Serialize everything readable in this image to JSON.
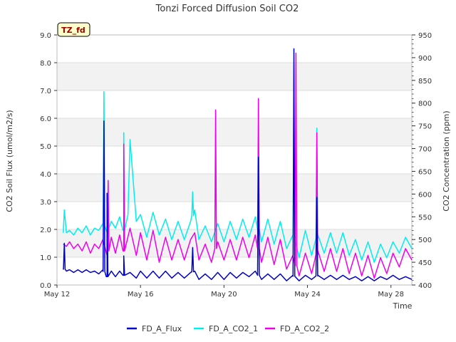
{
  "chart_data": {
    "type": "line",
    "title": "Tonzi Forced Diffusion Soil CO2",
    "site_label": "TZ_fd",
    "xlabel": "Time",
    "ylabel_left": "CO2 Soil Flux (umol/m2/s)",
    "ylabel_right": "CO2 Concentration (ppm)",
    "x_unit": "day of May",
    "xlim": [
      12,
      29.0
    ],
    "ylim_left": [
      0,
      9
    ],
    "ylim_right": [
      400,
      950
    ],
    "x_ticks": [
      {
        "value": 12,
        "label": "May 12"
      },
      {
        "value": 16,
        "label": "May 16"
      },
      {
        "value": 20,
        "label": "May 20"
      },
      {
        "value": 24,
        "label": "May 24"
      },
      {
        "value": 28,
        "label": "May 28"
      }
    ],
    "y_ticks_left": [
      "0.0",
      "1.0",
      "2.0",
      "3.0",
      "4.0",
      "5.0",
      "6.0",
      "7.0",
      "8.0",
      "9.0"
    ],
    "y_ticks_right": [
      "400",
      "450",
      "500",
      "550",
      "600",
      "650",
      "700",
      "750",
      "800",
      "850",
      "900",
      "950"
    ],
    "grid": "horizontal bands",
    "legend_position": "bottom",
    "colors": {
      "flux": "#0000cc",
      "co2_1": "#00eeee",
      "co2_2": "#ee00ee"
    },
    "series": [
      {
        "name": "FD_A_CO2_1",
        "axis": "right",
        "x": [
          12.3,
          12.35,
          12.45,
          12.6,
          12.8,
          13.0,
          13.2,
          13.4,
          13.6,
          13.8,
          14.0,
          14.2,
          14.4,
          14.6,
          14.8,
          15.0,
          15.2,
          15.4,
          15.5,
          15.8,
          16.0,
          16.3,
          16.6,
          16.9,
          17.2,
          17.5,
          17.8,
          18.1,
          18.4,
          18.6,
          18.8,
          19.1,
          19.4,
          19.7,
          20.0,
          20.3,
          20.6,
          20.9,
          21.2,
          21.5,
          21.8,
          22.1,
          22.4,
          22.7,
          23.0,
          23.3,
          23.6,
          23.9,
          24.2,
          24.5,
          24.8,
          25.1,
          25.4,
          25.7,
          26.0,
          26.3,
          26.6,
          26.9,
          27.2,
          27.5,
          27.8,
          28.1,
          28.4,
          28.7,
          29.0
        ],
        "y": [
          515,
          565,
          515,
          520,
          510,
          525,
          515,
          530,
          510,
          525,
          520,
          535,
          515,
          540,
          525,
          550,
          520,
          555,
          720,
          540,
          555,
          505,
          560,
          510,
          545,
          500,
          540,
          500,
          540,
          565,
          500,
          530,
          495,
          535,
          495,
          540,
          500,
          545,
          505,
          550,
          495,
          545,
          490,
          540,
          480,
          510,
          460,
          520,
          465,
          510,
          470,
          515,
          470,
          515,
          465,
          500,
          455,
          495,
          450,
          490,
          460,
          495,
          470,
          505,
          480
        ]
      },
      {
        "name": "FD_A_CO2_2",
        "axis": "right",
        "x": [
          12.3,
          12.45,
          12.6,
          12.8,
          13.0,
          13.2,
          13.4,
          13.6,
          13.8,
          14.0,
          14.2,
          14.4,
          14.6,
          14.8,
          15.0,
          15.2,
          15.5,
          15.8,
          16.0,
          16.3,
          16.6,
          16.9,
          17.2,
          17.5,
          17.8,
          18.1,
          18.4,
          18.6,
          18.8,
          19.1,
          19.4,
          19.7,
          20.0,
          20.3,
          20.6,
          20.9,
          21.2,
          21.5,
          21.8,
          22.1,
          22.4,
          22.7,
          23.0,
          23.3,
          23.6,
          23.9,
          24.2,
          24.5,
          24.8,
          25.1,
          25.4,
          25.7,
          26.0,
          26.3,
          26.6,
          26.9,
          27.2,
          27.5,
          27.8,
          28.1,
          28.4,
          28.7,
          29.0
        ],
        "y": [
          490,
          485,
          495,
          480,
          490,
          475,
          495,
          470,
          490,
          480,
          500,
          465,
          505,
          470,
          510,
          475,
          525,
          465,
          515,
          455,
          520,
          450,
          505,
          455,
          500,
          455,
          500,
          515,
          455,
          490,
          450,
          495,
          455,
          500,
          455,
          505,
          460,
          510,
          450,
          505,
          445,
          500,
          435,
          465,
          420,
          470,
          425,
          475,
          430,
          480,
          430,
          480,
          425,
          470,
          420,
          465,
          415,
          460,
          425,
          470,
          440,
          480,
          455
        ]
      },
      {
        "name": "FD_A_Flux",
        "axis": "left",
        "x": [
          12.3,
          12.45,
          12.6,
          12.8,
          13.0,
          13.2,
          13.4,
          13.6,
          13.8,
          14.0,
          14.2,
          14.4,
          14.6,
          14.8,
          15.0,
          15.2,
          15.5,
          15.8,
          16.0,
          16.3,
          16.6,
          16.9,
          17.2,
          17.5,
          17.8,
          18.1,
          18.4,
          18.6,
          18.8,
          19.1,
          19.4,
          19.7,
          20.0,
          20.3,
          20.6,
          20.9,
          21.2,
          21.5,
          21.8,
          22.1,
          22.4,
          22.7,
          23.0,
          23.3,
          23.6,
          23.9,
          24.2,
          24.5,
          24.8,
          25.1,
          25.4,
          25.7,
          26.0,
          26.3,
          26.6,
          26.9,
          27.2,
          27.5,
          27.8,
          28.1,
          28.4,
          28.7,
          29.0
        ],
        "y": [
          0.6,
          0.5,
          0.55,
          0.45,
          0.55,
          0.45,
          0.55,
          0.45,
          0.5,
          0.4,
          0.55,
          0.3,
          0.5,
          0.3,
          0.5,
          0.35,
          0.45,
          0.25,
          0.5,
          0.25,
          0.5,
          0.25,
          0.5,
          0.25,
          0.45,
          0.25,
          0.45,
          0.5,
          0.2,
          0.4,
          0.2,
          0.45,
          0.2,
          0.45,
          0.25,
          0.45,
          0.3,
          0.5,
          0.2,
          0.4,
          0.2,
          0.4,
          0.15,
          0.35,
          0.15,
          0.35,
          0.2,
          0.35,
          0.2,
          0.35,
          0.2,
          0.35,
          0.2,
          0.3,
          0.15,
          0.3,
          0.15,
          0.3,
          0.2,
          0.35,
          0.2,
          0.3,
          0.2
        ]
      }
    ],
    "spikes": [
      {
        "series": "FD_A_Flux",
        "x": 12.35,
        "y": 1.5
      },
      {
        "series": "FD_A_Flux",
        "x": 14.25,
        "y": 5.9
      },
      {
        "series": "FD_A_Flux",
        "x": 14.4,
        "y": 3.3
      },
      {
        "series": "FD_A_Flux",
        "x": 15.2,
        "y": 1.05
      },
      {
        "series": "FD_A_Flux",
        "x": 18.5,
        "y": 1.35
      },
      {
        "series": "FD_A_Flux",
        "x": 21.65,
        "y": 4.6
      },
      {
        "series": "FD_A_Flux",
        "x": 23.35,
        "y": 8.5
      },
      {
        "series": "FD_A_Flux",
        "x": 24.45,
        "y": 3.15
      },
      {
        "series": "FD_A_CO2_1",
        "x": 14.25,
        "y": 825
      },
      {
        "series": "FD_A_CO2_1",
        "x": 15.2,
        "y": 735
      },
      {
        "series": "FD_A_CO2_1",
        "x": 18.5,
        "y": 605
      },
      {
        "series": "FD_A_CO2_1",
        "x": 21.65,
        "y": 690
      },
      {
        "series": "FD_A_CO2_1",
        "x": 23.35,
        "y": 850
      },
      {
        "series": "FD_A_CO2_1",
        "x": 24.45,
        "y": 745
      },
      {
        "series": "FD_A_CO2_2",
        "x": 14.45,
        "y": 630
      },
      {
        "series": "FD_A_CO2_2",
        "x": 15.2,
        "y": 710
      },
      {
        "series": "FD_A_CO2_2",
        "x": 19.6,
        "y": 785
      },
      {
        "series": "FD_A_CO2_2",
        "x": 21.65,
        "y": 810
      },
      {
        "series": "FD_A_CO2_2",
        "x": 23.45,
        "y": 910
      },
      {
        "series": "FD_A_CO2_2",
        "x": 24.45,
        "y": 735
      }
    ],
    "legend": [
      "FD_A_Flux",
      "FD_A_CO2_1",
      "FD_A_CO2_2"
    ]
  }
}
